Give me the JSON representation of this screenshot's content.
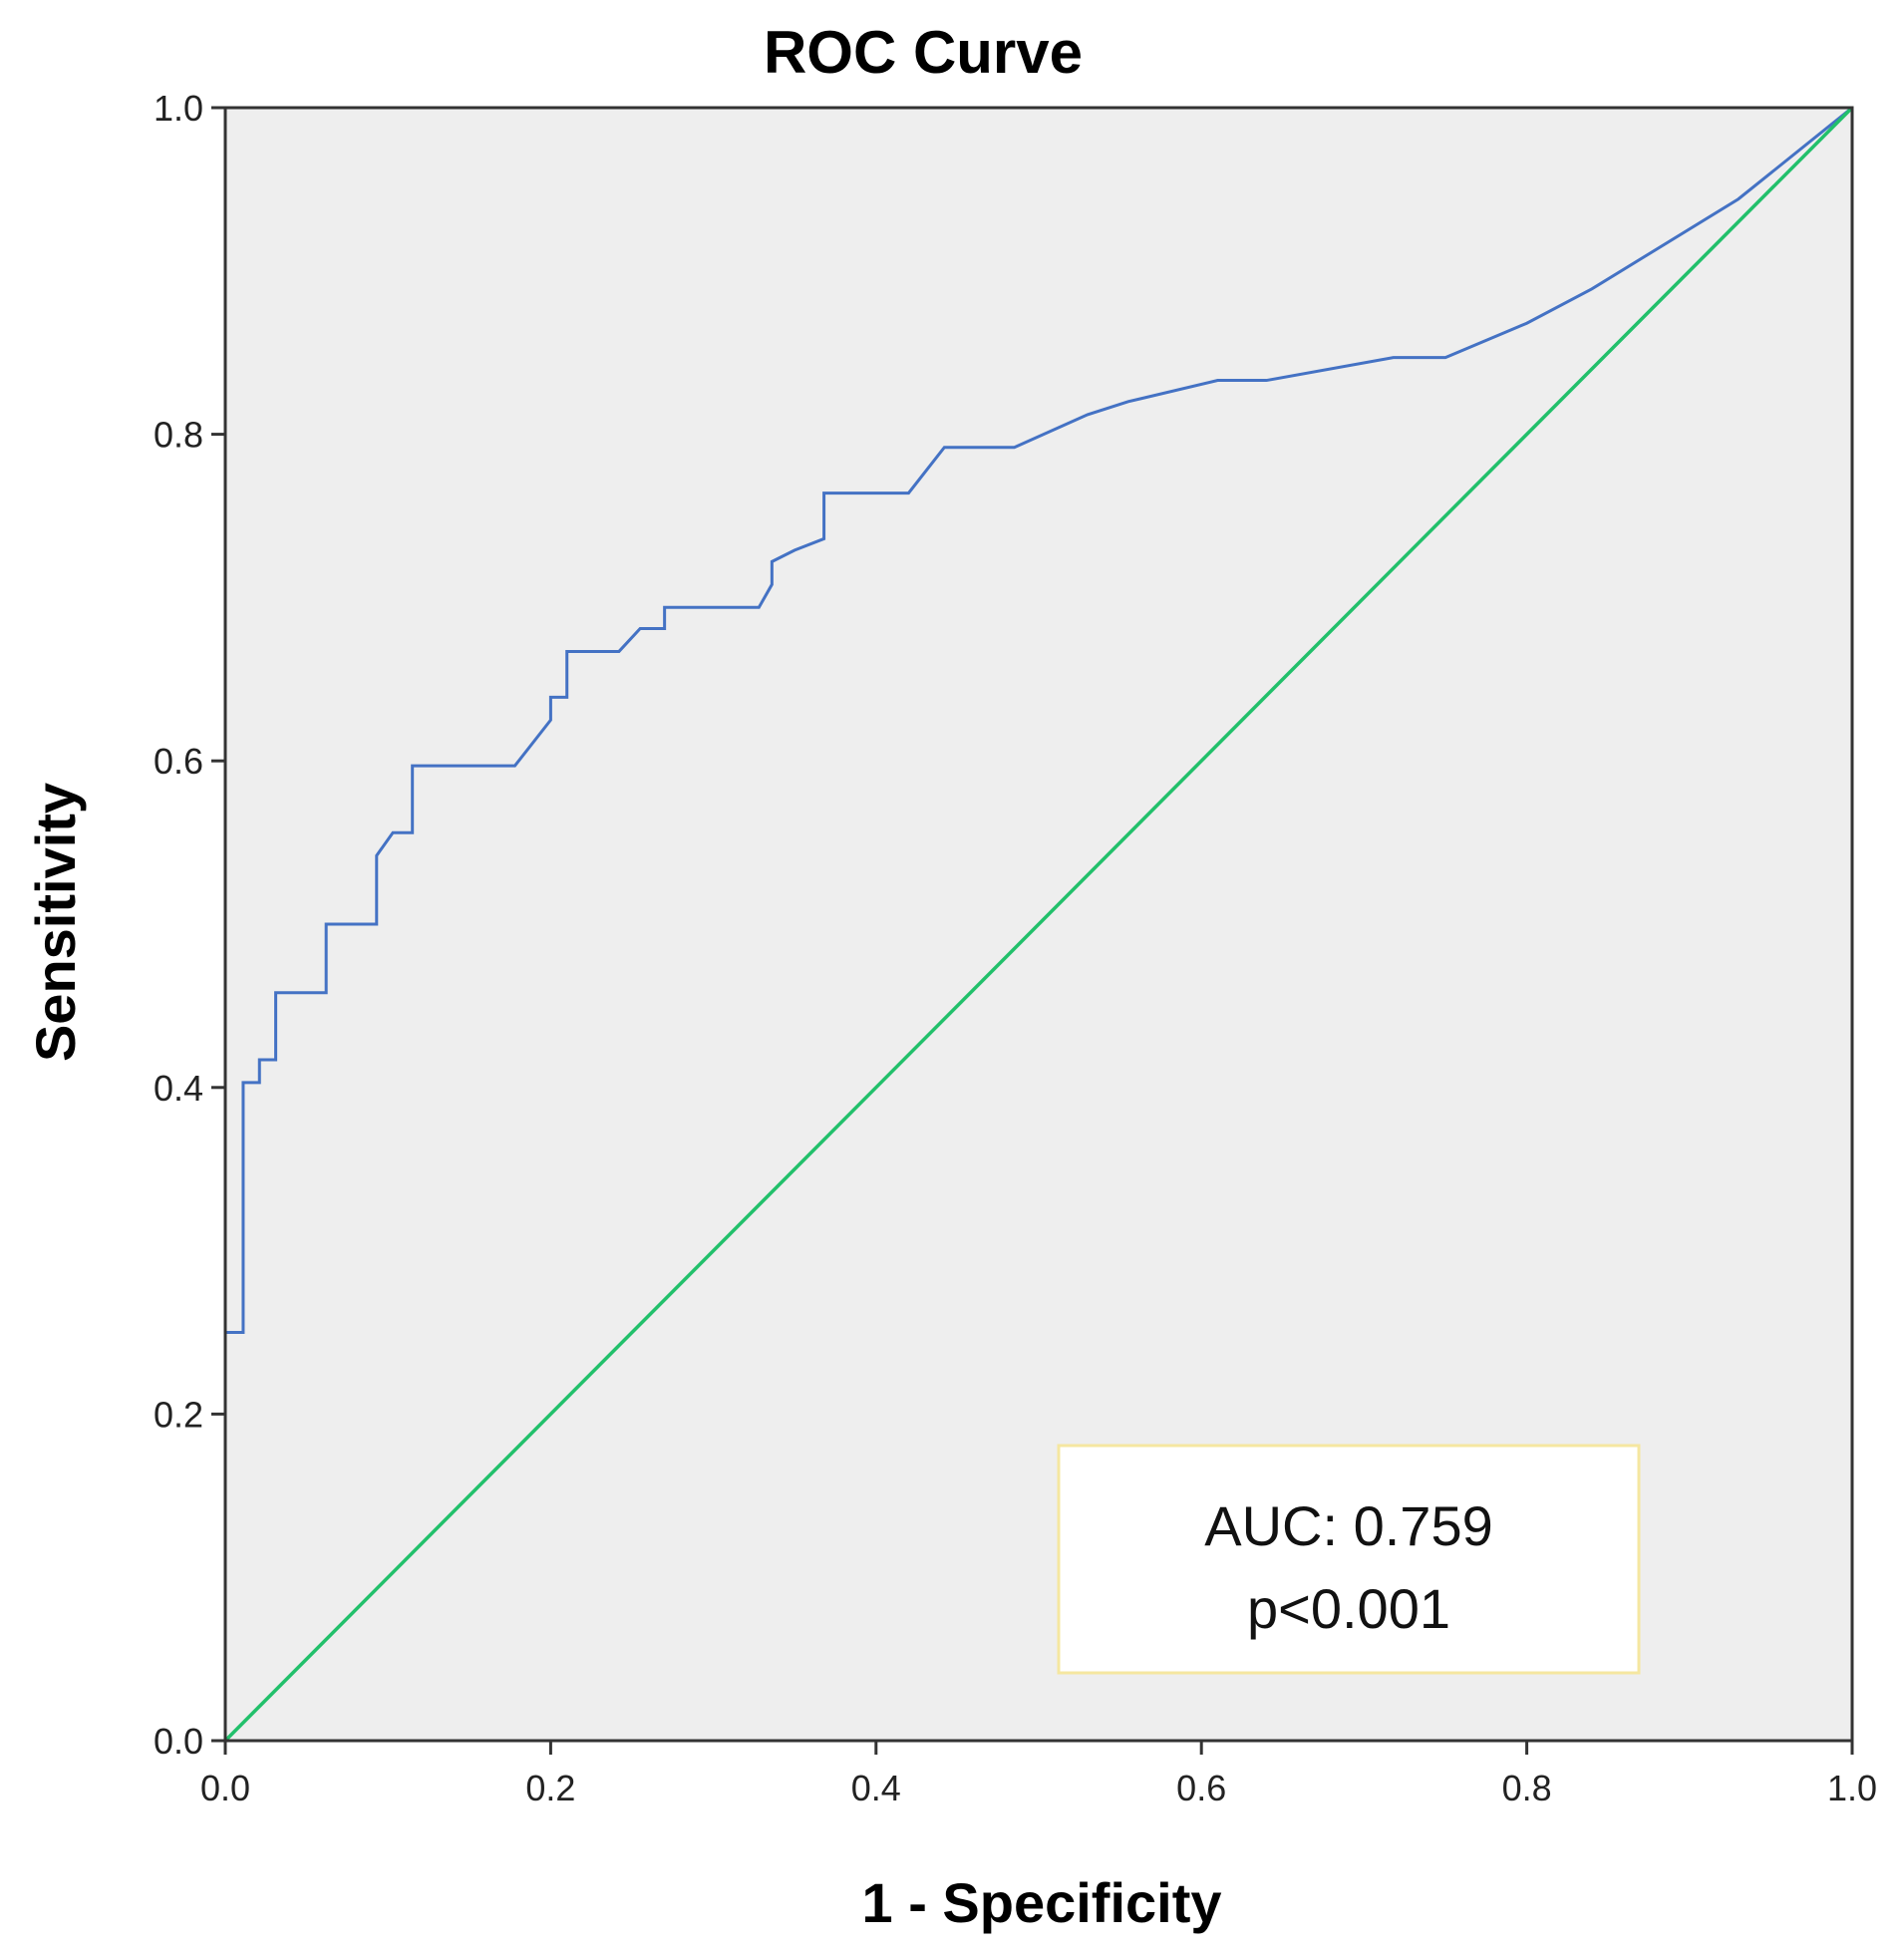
{
  "chart_data": {
    "type": "line",
    "title": "ROC Curve",
    "xlabel": "1 - Specificity",
    "ylabel": "Sensitivity",
    "xlim": [
      0,
      1
    ],
    "ylim": [
      0,
      1
    ],
    "xticks": [
      "0.0",
      "0.2",
      "0.4",
      "0.6",
      "0.8",
      "1.0"
    ],
    "yticks": [
      "0.0",
      "0.2",
      "0.4",
      "0.6",
      "0.8",
      "1.0"
    ],
    "grid": false,
    "background": "#eeeeee",
    "series": [
      {
        "name": "ROC",
        "color": "#4472c4",
        "x": [
          0.0,
          0.0,
          0.011,
          0.011,
          0.021,
          0.021,
          0.031,
          0.031,
          0.062,
          0.062,
          0.093,
          0.093,
          0.103,
          0.115,
          0.115,
          0.178,
          0.2,
          0.2,
          0.21,
          0.21,
          0.242,
          0.255,
          0.27,
          0.27,
          0.328,
          0.336,
          0.336,
          0.35,
          0.368,
          0.368,
          0.42,
          0.442,
          0.485,
          0.53,
          0.555,
          0.61,
          0.64,
          0.718,
          0.75,
          0.8,
          0.84,
          0.93,
          1.0
        ],
        "y": [
          0.0,
          0.25,
          0.25,
          0.403,
          0.403,
          0.417,
          0.417,
          0.458,
          0.458,
          0.5,
          0.5,
          0.542,
          0.556,
          0.556,
          0.597,
          0.597,
          0.625,
          0.639,
          0.639,
          0.667,
          0.667,
          0.681,
          0.681,
          0.694,
          0.694,
          0.708,
          0.722,
          0.729,
          0.736,
          0.764,
          0.764,
          0.792,
          0.792,
          0.812,
          0.82,
          0.833,
          0.833,
          0.847,
          0.847,
          0.868,
          0.889,
          0.944,
          1.0
        ]
      },
      {
        "name": "Reference Line",
        "color": "#22c06b",
        "x": [
          0.0,
          1.0
        ],
        "y": [
          0.0,
          1.0
        ]
      }
    ],
    "annotation": {
      "lines": [
        "AUC: 0.759",
        "p<0.001"
      ],
      "border_color": "#f5e7a0",
      "fill": "#ffffff"
    }
  }
}
